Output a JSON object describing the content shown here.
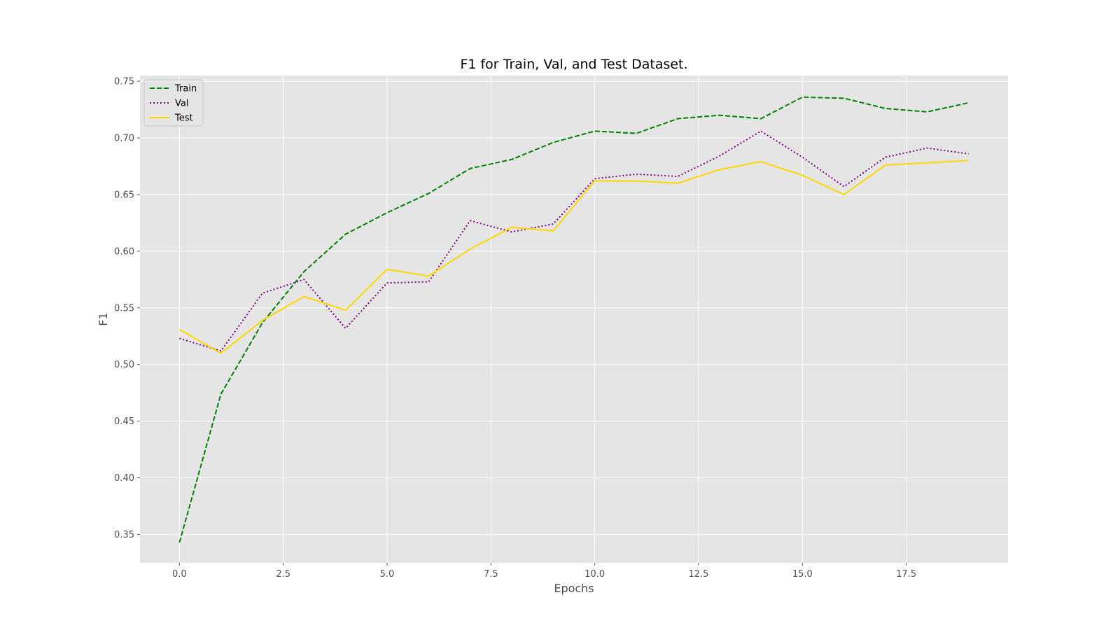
{
  "chart_data": {
    "type": "line",
    "title": "F1 for Train, Val, and Test Dataset.",
    "xlabel": "Epochs",
    "ylabel": "F1",
    "xlim": [
      -0.95,
      19.95
    ],
    "ylim": [
      0.325,
      0.755
    ],
    "xticks": [
      0.0,
      2.5,
      5.0,
      7.5,
      10.0,
      12.5,
      15.0,
      17.5
    ],
    "xtick_labels": [
      "0.0",
      "2.5",
      "5.0",
      "7.5",
      "10.0",
      "12.5",
      "15.0",
      "17.5"
    ],
    "yticks": [
      0.35,
      0.4,
      0.45,
      0.5,
      0.55,
      0.6,
      0.65,
      0.7,
      0.75
    ],
    "ytick_labels": [
      "0.35",
      "0.40",
      "0.45",
      "0.50",
      "0.55",
      "0.60",
      "0.65",
      "0.70",
      "0.75"
    ],
    "grid": true,
    "legend_position": "top-left",
    "background": "#e5e5e5",
    "x": [
      0,
      1,
      2,
      3,
      4,
      5,
      6,
      7,
      8,
      9,
      10,
      11,
      12,
      13,
      14,
      15,
      16,
      17,
      18,
      19
    ],
    "series": [
      {
        "name": "Train",
        "color": "#008000",
        "style": "dashed",
        "values": [
          0.343,
          0.474,
          0.537,
          0.582,
          0.615,
          0.634,
          0.651,
          0.673,
          0.681,
          0.696,
          0.706,
          0.704,
          0.717,
          0.72,
          0.717,
          0.736,
          0.735,
          0.726,
          0.723,
          0.731
        ]
      },
      {
        "name": "Val",
        "color": "#800080",
        "style": "dotted",
        "values": [
          0.523,
          0.512,
          0.563,
          0.575,
          0.532,
          0.572,
          0.573,
          0.627,
          0.617,
          0.624,
          0.664,
          0.668,
          0.666,
          0.684,
          0.706,
          0.683,
          0.657,
          0.683,
          0.691,
          0.686
        ]
      },
      {
        "name": "Test",
        "color": "#ffd700",
        "style": "solid",
        "values": [
          0.531,
          0.51,
          0.539,
          0.56,
          0.548,
          0.584,
          0.578,
          0.602,
          0.621,
          0.618,
          0.662,
          0.662,
          0.66,
          0.672,
          0.679,
          0.667,
          0.65,
          0.676,
          0.678,
          0.68
        ]
      }
    ]
  }
}
